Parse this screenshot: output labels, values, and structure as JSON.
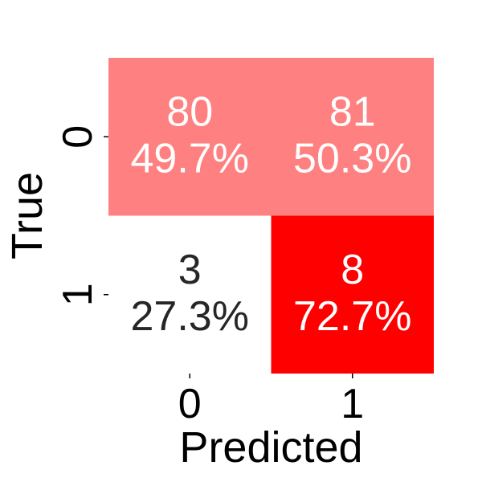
{
  "chart_data": {
    "type": "heatmap",
    "title": "",
    "xlabel": "Predicted",
    "ylabel": "True",
    "x_categories": [
      "0",
      "1"
    ],
    "y_categories": [
      "0",
      "1"
    ],
    "cells": [
      {
        "row": 0,
        "col": 0,
        "count": "80",
        "percent": "49.7%",
        "value": 49.7,
        "color": "#ff8080",
        "text_color": "#ffffff"
      },
      {
        "row": 0,
        "col": 1,
        "count": "81",
        "percent": "50.3%",
        "value": 50.3,
        "color": "#ff8080",
        "text_color": "#ffffff"
      },
      {
        "row": 1,
        "col": 0,
        "count": "3",
        "percent": "27.3%",
        "value": 27.3,
        "color": "#ffffff",
        "text_color": "#262626"
      },
      {
        "row": 1,
        "col": 1,
        "count": "8",
        "percent": "72.7%",
        "value": 72.7,
        "color": "#ff0000",
        "text_color": "#ffffff"
      }
    ],
    "grid": false,
    "legend": "none"
  }
}
